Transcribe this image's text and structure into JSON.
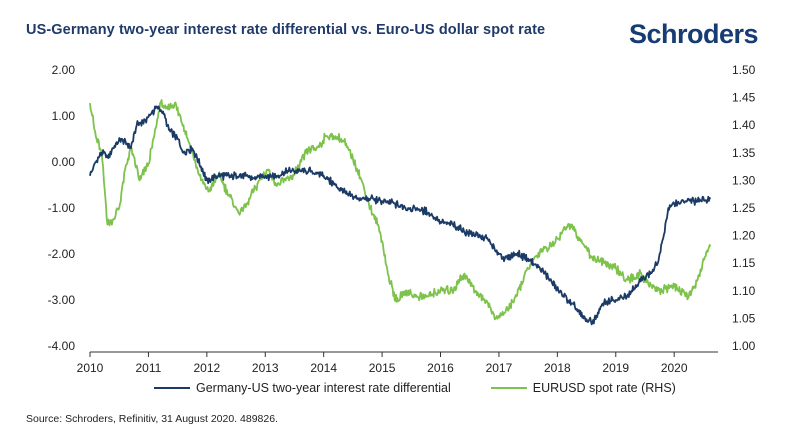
{
  "header": {
    "title": "US-Germany two-year interest rate differential vs. Euro-US dollar spot rate",
    "brand": "Schroders"
  },
  "footer": {
    "source": "Source: Schroders, Refinitiv, 31 August 2020. 489826."
  },
  "chart_data": {
    "type": "line",
    "x_ticks": [
      2010,
      2011,
      2012,
      2013,
      2014,
      2015,
      2016,
      2017,
      2018,
      2019,
      2020
    ],
    "x_tick_labels": [
      "2010",
      "2011",
      "2012",
      "2013",
      "2014",
      "2015",
      "2016",
      "2017",
      "2018",
      "2019",
      "2020"
    ],
    "xlim": [
      2010,
      2020.75
    ],
    "y_left": {
      "ticks": [
        2,
        1,
        0,
        -1,
        -2,
        -3,
        -4
      ],
      "labels": [
        "2.00",
        "1.00",
        "0.00",
        "-1.00",
        "-2.00",
        "-3.00",
        "-4.00"
      ],
      "lim": [
        -4,
        2
      ]
    },
    "y_right": {
      "ticks": [
        1.5,
        1.45,
        1.4,
        1.35,
        1.3,
        1.25,
        1.2,
        1.15,
        1.1,
        1.05,
        1.0
      ],
      "labels": [
        "1.50",
        "1.45",
        "1.40",
        "1.35",
        "1.30",
        "1.25",
        "1.20",
        "1.15",
        "1.10",
        "1.05",
        "1.00"
      ],
      "lim": [
        1.0,
        1.5
      ]
    },
    "series": [
      {
        "name": "Germany-US two-year interest rate differential",
        "axis": "left",
        "color": "#1b3a66",
        "x": [
          2010.0,
          2010.1,
          2010.2,
          2010.3,
          2010.42,
          2010.55,
          2010.7,
          2010.8,
          2010.95,
          2011.05,
          2011.15,
          2011.25,
          2011.35,
          2011.5,
          2011.6,
          2011.75,
          2011.9,
          2012.0,
          2012.2,
          2012.4,
          2012.6,
          2012.8,
          2013.0,
          2013.2,
          2013.4,
          2013.6,
          2013.8,
          2014.0,
          2014.2,
          2014.4,
          2014.6,
          2014.8,
          2015.0,
          2015.2,
          2015.4,
          2015.6,
          2015.8,
          2016.0,
          2016.2,
          2016.4,
          2016.6,
          2016.8,
          2016.95,
          2017.1,
          2017.3,
          2017.5,
          2017.7,
          2017.9,
          2018.1,
          2018.3,
          2018.45,
          2018.6,
          2018.8,
          2019.0,
          2019.2,
          2019.4,
          2019.6,
          2019.72,
          2019.8,
          2019.9,
          2020.0,
          2020.2,
          2020.4,
          2020.62
        ],
        "values": [
          -0.3,
          0.0,
          0.2,
          0.1,
          0.35,
          0.5,
          0.3,
          0.8,
          0.9,
          1.05,
          1.2,
          1.1,
          0.7,
          0.5,
          0.2,
          0.3,
          -0.1,
          -0.4,
          -0.3,
          -0.3,
          -0.3,
          -0.35,
          -0.3,
          -0.3,
          -0.2,
          -0.2,
          -0.2,
          -0.3,
          -0.5,
          -0.7,
          -0.8,
          -0.8,
          -0.85,
          -0.9,
          -1.0,
          -1.0,
          -1.1,
          -1.3,
          -1.35,
          -1.5,
          -1.6,
          -1.65,
          -1.95,
          -2.1,
          -2.0,
          -2.1,
          -2.3,
          -2.6,
          -2.9,
          -3.15,
          -3.4,
          -3.5,
          -3.05,
          -3.0,
          -2.9,
          -2.6,
          -2.4,
          -2.2,
          -1.7,
          -1.0,
          -0.9,
          -0.85,
          -0.85,
          -0.8
        ]
      },
      {
        "name": "EURUSD spot rate (RHS)",
        "axis": "right",
        "color": "#7dc24a",
        "x": [
          2010.0,
          2010.1,
          2010.2,
          2010.3,
          2010.4,
          2010.5,
          2010.6,
          2010.7,
          2010.85,
          2011.0,
          2011.1,
          2011.2,
          2011.3,
          2011.45,
          2011.6,
          2011.75,
          2011.9,
          2012.05,
          2012.2,
          2012.4,
          2012.55,
          2012.7,
          2012.9,
          2013.05,
          2013.2,
          2013.35,
          2013.5,
          2013.7,
          2013.9,
          2014.05,
          2014.2,
          2014.35,
          2014.5,
          2014.65,
          2014.8,
          2014.92,
          2015.0,
          2015.1,
          2015.25,
          2015.4,
          2015.6,
          2015.8,
          2016.0,
          2016.2,
          2016.4,
          2016.6,
          2016.8,
          2016.95,
          2017.1,
          2017.3,
          2017.5,
          2017.7,
          2017.9,
          2018.1,
          2018.25,
          2018.4,
          2018.6,
          2018.8,
          2019.0,
          2019.2,
          2019.4,
          2019.6,
          2019.8,
          2019.95,
          2020.1,
          2020.25,
          2020.4,
          2020.55,
          2020.62
        ],
        "values": [
          1.44,
          1.38,
          1.35,
          1.22,
          1.23,
          1.25,
          1.32,
          1.36,
          1.3,
          1.33,
          1.38,
          1.44,
          1.43,
          1.44,
          1.4,
          1.35,
          1.3,
          1.28,
          1.31,
          1.27,
          1.24,
          1.26,
          1.3,
          1.32,
          1.29,
          1.3,
          1.31,
          1.35,
          1.36,
          1.38,
          1.38,
          1.37,
          1.34,
          1.3,
          1.25,
          1.22,
          1.19,
          1.13,
          1.08,
          1.1,
          1.09,
          1.09,
          1.1,
          1.1,
          1.13,
          1.1,
          1.08,
          1.05,
          1.06,
          1.09,
          1.14,
          1.17,
          1.18,
          1.21,
          1.22,
          1.19,
          1.16,
          1.15,
          1.14,
          1.12,
          1.13,
          1.11,
          1.1,
          1.11,
          1.1,
          1.09,
          1.12,
          1.17,
          1.18
        ]
      }
    ]
  }
}
